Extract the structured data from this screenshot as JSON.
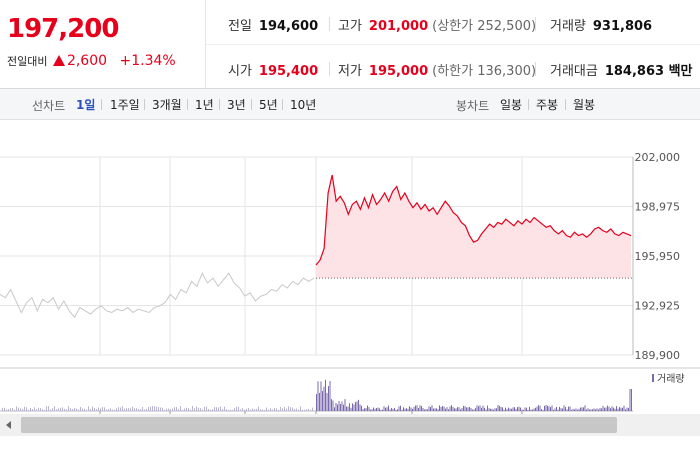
{
  "quote": {
    "price": "197,200",
    "change_label": "전일대비",
    "change": "2,600",
    "change_pct": "+1.34%"
  },
  "stats": {
    "prev_close": {
      "label": "전일",
      "value": "194,600"
    },
    "high": {
      "label": "고가",
      "value": "201,000",
      "sub": "(상한가 252,500)"
    },
    "volume": {
      "label": "거래량",
      "value": "931,806"
    },
    "open": {
      "label": "시가",
      "value": "195,400"
    },
    "low": {
      "label": "저가",
      "value": "195,000",
      "sub": "(하한가 136,300)"
    },
    "amount": {
      "label": "거래대금",
      "value": "184,863 백만"
    }
  },
  "toolbar": {
    "line_label": "선차트",
    "periods": [
      "1일",
      "1주일",
      "3개월",
      "1년",
      "3년",
      "5년",
      "10년"
    ],
    "active_period": "1일",
    "candle_label": "봉차트",
    "candles": [
      "일봉",
      "주봉",
      "월봉"
    ]
  },
  "chart_data": {
    "type": "line",
    "y_ticks": [
      "202,000",
      "198,975",
      "195,950",
      "192,925",
      "189,900"
    ],
    "ylim": [
      189900,
      202000
    ],
    "base_price": 194600,
    "volume_legend": "거래량",
    "colors": {
      "up": "#e5001c",
      "fill": "#fde3e6",
      "prev": "#c8c8c8",
      "volume": "#7b6aae",
      "grid": "#e6e6e6"
    },
    "prev_day": [
      193600,
      193400,
      193900,
      193200,
      192500,
      193100,
      193400,
      192600,
      193300,
      193100,
      193400,
      192700,
      193200,
      192600,
      192200,
      192800,
      192600,
      192400,
      192700,
      192900,
      192600,
      192500,
      192700,
      192600,
      192800,
      192500,
      192700,
      192600,
      192500,
      192800,
      192900,
      193100,
      193600,
      193300,
      193900,
      193700,
      194400,
      194100,
      194900,
      194300,
      194600,
      194100,
      194500,
      194900,
      194300,
      194000,
      193500,
      193700,
      193200,
      193500,
      193600,
      193900,
      193800,
      194200,
      194000,
      194400,
      194200,
      194600,
      194400,
      194600
    ],
    "today": [
      195400,
      195700,
      196400,
      199800,
      200900,
      199300,
      199600,
      199200,
      198500,
      199100,
      199300,
      198800,
      199500,
      198900,
      199700,
      199100,
      199400,
      199800,
      199300,
      199900,
      200200,
      199400,
      199800,
      199300,
      198900,
      199200,
      198800,
      199100,
      198700,
      198900,
      198500,
      198900,
      199300,
      199000,
      198600,
      198400,
      198000,
      197800,
      197200,
      196800,
      196900,
      197300,
      197600,
      197900,
      197700,
      198000,
      197900,
      198200,
      198000,
      197800,
      198100,
      197900,
      198200,
      198000,
      198300,
      198100,
      197900,
      197700,
      197800,
      197500,
      197300,
      197500,
      197200,
      197100,
      197400,
      197200,
      197300,
      197100,
      197300,
      197600,
      197700,
      197500,
      197400,
      197600,
      197300,
      197200,
      197400,
      197300,
      197200
    ]
  }
}
